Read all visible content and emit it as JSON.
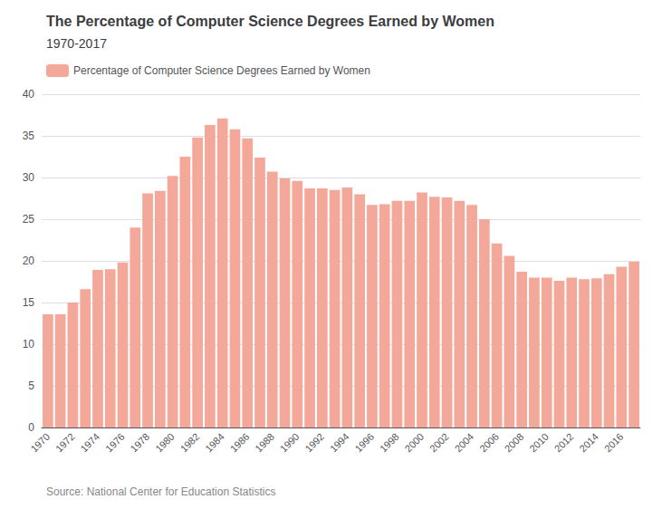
{
  "chart_data": {
    "type": "bar",
    "title": "The Percentage of Computer Science Degrees Earned by Women",
    "subtitle": "1970-2017",
    "annotations": [
      "Source: National Center for Education Statistics"
    ],
    "categories": [
      "1970",
      null,
      "1972",
      null,
      "1974",
      null,
      "1976",
      null,
      "1978",
      null,
      "1980",
      null,
      "1982",
      null,
      "1984",
      null,
      "1986",
      null,
      "1988",
      null,
      "1990",
      null,
      "1992",
      null,
      "1994",
      null,
      "1996",
      null,
      "1998",
      null,
      "2000",
      null,
      "2002",
      null,
      "2004",
      null,
      "2006",
      null,
      "2008",
      null,
      "2010",
      null,
      "2012",
      null,
      "2014",
      null,
      "2016",
      null
    ],
    "series": [
      {
        "name": "Percentage of Computer Science Degrees Earned by Women",
        "color": "#f4a89a",
        "values": [
          13.6,
          13.6,
          15.0,
          16.6,
          18.9,
          19.0,
          19.8,
          24.0,
          28.1,
          28.4,
          30.2,
          32.5,
          34.8,
          36.3,
          37.1,
          35.8,
          34.7,
          32.4,
          30.7,
          29.9,
          29.6,
          28.7,
          28.7,
          28.5,
          28.8,
          28.0,
          26.7,
          26.8,
          27.2,
          27.2,
          28.2,
          27.7,
          27.6,
          27.2,
          26.7,
          25.0,
          22.1,
          20.6,
          18.7,
          18.0,
          18.0,
          17.6,
          18.0,
          17.8,
          17.9,
          18.4,
          19.3,
          19.9
        ]
      }
    ],
    "ylim": [
      0,
      40
    ],
    "yticks": [
      0,
      5,
      10,
      15,
      20,
      25,
      30,
      35,
      40
    ],
    "grid": true,
    "legend": "upper left"
  }
}
